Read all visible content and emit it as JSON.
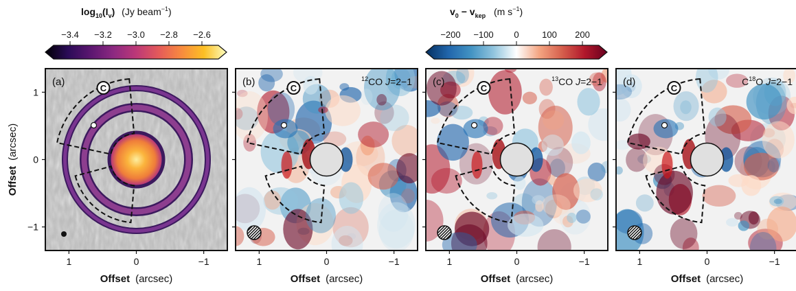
{
  "colorbars": {
    "left": {
      "title_main": "log",
      "title_sub": "10",
      "title_open": "(I",
      "title_var_sub": "v",
      "title_close": ")",
      "title_unit": "(Jy beam",
      "title_unit_sup": "−1",
      "title_unit_close": ")",
      "ticks": [
        "−3.4",
        "−3.2",
        "−3.0",
        "−2.8",
        "−2.6"
      ],
      "colors": [
        "#000004",
        "#2b0b57",
        "#5b1670",
        "#8c2981",
        "#bc3878",
        "#e45a5a",
        "#f88a3f",
        "#fcbf24",
        "#fcfdbf"
      ]
    },
    "right": {
      "title_v0": "v",
      "title_v0_sub": "0",
      "title_minus": " − v",
      "title_kep_sub": "kep",
      "title_unit": "(m s",
      "title_unit_sup": "−1",
      "title_unit_close": ")",
      "ticks": [
        "−200",
        "−100",
        "0",
        "100",
        "200"
      ],
      "colors": [
        "#053061",
        "#2166ac",
        "#4393c3",
        "#92c5de",
        "#ffffff",
        "#f4a582",
        "#d6604d",
        "#b2182b",
        "#67001f"
      ]
    }
  },
  "panels": [
    {
      "tag": "(a)",
      "title": "",
      "iso": "",
      "line": "",
      "kind": "continuum"
    },
    {
      "tag": "(b)",
      "iso": "12",
      "line_pre": "CO ",
      "line_j": "J",
      "line_post": "=2−1",
      "kind": "velocity"
    },
    {
      "tag": "(c)",
      "iso": "13",
      "line_pre": "CO ",
      "line_j": "J",
      "line_post": "=2−1",
      "kind": "velocity"
    },
    {
      "tag": "(d)",
      "iso": "18",
      "line_pre": "C",
      "line_mid": "O ",
      "line_j": "J",
      "line_post": "=2−1",
      "kind": "velocity"
    }
  ],
  "marker_letter": "C",
  "axes": {
    "xlabel_bold": "Offset",
    "xlabel_unit": "(arcsec)",
    "ylabel_bold": "Offset",
    "ylabel_unit": "(arcsec)",
    "xticks": [
      "1",
      "0",
      "−1"
    ],
    "yticks": [
      "1",
      "0",
      "−1"
    ]
  },
  "chart_data": {
    "type": "heatmap",
    "panels": 4,
    "x_range": [
      1.35,
      -1.35
    ],
    "y_range": [
      -1.35,
      1.35
    ],
    "xticks": [
      1,
      0,
      -1
    ],
    "yticks": [
      1,
      0,
      -1
    ],
    "colorbar_left_range": [
      -3.5,
      -2.5
    ],
    "colorbar_right_range": [
      -250,
      250
    ]
  }
}
